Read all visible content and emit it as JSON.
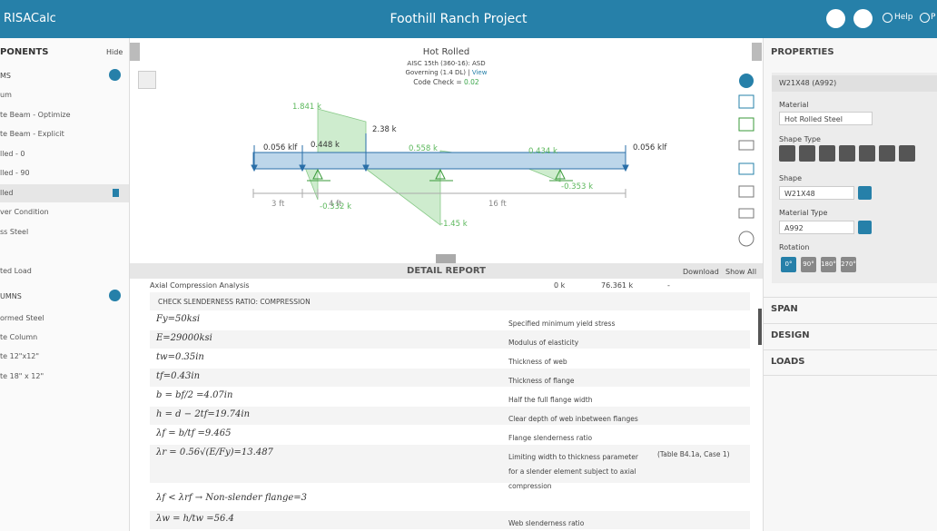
{
  "header": {
    "app": "RISACalc",
    "title": "Foothill Ranch Project",
    "help": "Help",
    "user": "P"
  },
  "left_panel": {
    "title": "PONENTS",
    "hide": "Hide",
    "sections": [
      {
        "title": "MS",
        "items": [
          "um",
          "te Beam - Optimize",
          "te Beam - Explicit",
          "lled - 0",
          "lled - 90",
          "lled",
          "ver Condition",
          "ss Steel",
          "ted Load"
        ]
      },
      {
        "title": "UMNS",
        "items": [
          "ormed Steel",
          "te Column",
          "te 12\"x12\"",
          "te 18\" x 12\""
        ]
      }
    ]
  },
  "summary": {
    "title": "Hot Rolled",
    "code": "AISC 15th (360-16): ASD",
    "governing": "Governing (1.4 DL) | ",
    "view": "View",
    "check": "Code Check = ",
    "check_value": "0.02"
  },
  "diagram": {
    "labels": [
      "1.841 k",
      "2.38 k",
      "0.056 klf",
      "0.448 k",
      "0.558 k",
      "0.434 k",
      "0.056 klf",
      "-0.353 k",
      "-0.332 k",
      "-1.45 k"
    ],
    "dimensions": [
      "3 ft",
      "4 ft",
      "16 ft"
    ]
  },
  "report": {
    "title": "DETAIL REPORT",
    "download": "Download",
    "show_all": "Show All",
    "summary": [
      "Axial Compression Analysis",
      "0 k",
      "76.361 k",
      "-"
    ],
    "section": "CHECK SLENDERNESS RATIO: COMPRESSION",
    "rows": [
      {
        "formula": "Fy=50ksi",
        "description": "Specified minimum yield stress"
      },
      {
        "formula": "E=29000ksi",
        "description": "Modulus of elasticity"
      },
      {
        "formula": "tw=0.35in",
        "description": "Thickness of web"
      },
      {
        "formula": "tf=0.43in",
        "description": "Thickness of flange"
      },
      {
        "formula": "b = bf/2 =4.07in",
        "description": "Half the full flange width"
      },
      {
        "formula": "h = d − 2tf=19.74in",
        "description": "Clear depth of web inbetween flanges"
      },
      {
        "formula": "λf = b/tf =9.465",
        "description": "Flange slenderness ratio"
      },
      {
        "formula": "λr = 0.56√(E/Fy)=13.487",
        "description": "Limiting width to thickness parameter for a slender element subject to axial compression",
        "note": "(Table B4.1a, Case 1)"
      },
      {
        "formula": "λf < λrf → Non-slender flange=3"
      },
      {
        "formula": "λw = h/tw =56.4",
        "description": "Web slenderness ratio"
      }
    ]
  },
  "properties": {
    "title": "PROPERTIES",
    "member": "W21X48 (A992)",
    "material_label": "Material",
    "material": "Hot Rolled Steel",
    "shape_type_label": "Shape Type",
    "shape_label": "Shape",
    "shape": "W21X48",
    "material_type_label": "Material Type",
    "material_type": "A992",
    "rotation_label": "Rotation",
    "rotations": [
      "0°",
      "90°",
      "180°",
      "270°"
    ],
    "sections": [
      "SPAN",
      "DESIGN",
      "LOADS"
    ]
  }
}
